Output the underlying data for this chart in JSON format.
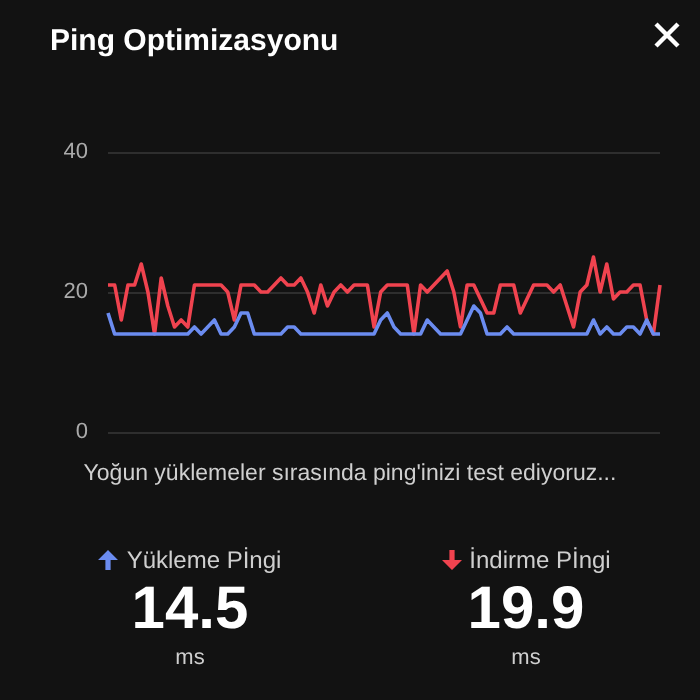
{
  "chart_data": {
    "type": "line",
    "title": "Ping Optimizasyonu",
    "categories": [
      null,
      null,
      null,
      null,
      null,
      null,
      null,
      null,
      null,
      null,
      null,
      null,
      null,
      null,
      null,
      null,
      null,
      null,
      null,
      null,
      null,
      null,
      null,
      null,
      null,
      null,
      null,
      null,
      null,
      null,
      null,
      null,
      null,
      null,
      null,
      null,
      null,
      null,
      null,
      null,
      null,
      null,
      null,
      null,
      null,
      null,
      null,
      null,
      null,
      null,
      null,
      null,
      null,
      null,
      null,
      null,
      null,
      null,
      null,
      null,
      null,
      null,
      null,
      null,
      null,
      null,
      null,
      null,
      null,
      null,
      null,
      null,
      null,
      null,
      null,
      null,
      null,
      null,
      null,
      null,
      null,
      null,
      null,
      null
    ],
    "series": [
      {
        "color": "#f0434f",
        "values": [
          21,
          21,
          16,
          21,
          21,
          24,
          20,
          14,
          22,
          18,
          15,
          16,
          15,
          21,
          21,
          21,
          21,
          21,
          20,
          16,
          21,
          21,
          21,
          20,
          20,
          21,
          22,
          21,
          21,
          22,
          20,
          17,
          21,
          18,
          20,
          21,
          20,
          21,
          21,
          21,
          15,
          20,
          21,
          21,
          21,
          21,
          14,
          21,
          20,
          21,
          22,
          23,
          20,
          15,
          21,
          21,
          19,
          17,
          17,
          21,
          21,
          21,
          17,
          19,
          21,
          21,
          21,
          20,
          21,
          18,
          15,
          20,
          21,
          25,
          20,
          24,
          19,
          20,
          20,
          21,
          21,
          16,
          14,
          21
        ]
      },
      {
        "color": "#6b8cf0",
        "values": [
          17,
          14,
          14,
          14,
          14,
          14,
          14,
          14,
          14,
          14,
          14,
          14,
          14,
          15,
          14,
          15,
          16,
          14,
          14,
          15,
          17,
          17,
          14,
          14,
          14,
          14,
          14,
          15,
          15,
          14,
          14,
          14,
          14,
          14,
          14,
          14,
          14,
          14,
          14,
          14,
          14,
          16,
          17,
          15,
          14,
          14,
          14,
          14,
          16,
          15,
          14,
          14,
          14,
          14,
          16,
          18,
          17,
          14,
          14,
          14,
          15,
          14,
          14,
          14,
          14,
          14,
          14,
          14,
          14,
          14,
          14,
          14,
          14,
          16,
          14,
          15,
          14,
          14,
          15,
          15,
          14,
          16,
          14,
          14
        ]
      }
    ],
    "ylim": [
      0,
      40
    ],
    "yticks": [
      0,
      20,
      40
    ],
    "grid": "y",
    "marker": "none",
    "line_style": "solid",
    "annotations": [
      "Yoğun yüklemeler sırasında ping'inizi test ediyoruz...",
      "Yükleme Pİngi",
      "14.5",
      "ms",
      "İndirme Pİngi",
      "19.9",
      "ms"
    ]
  }
}
